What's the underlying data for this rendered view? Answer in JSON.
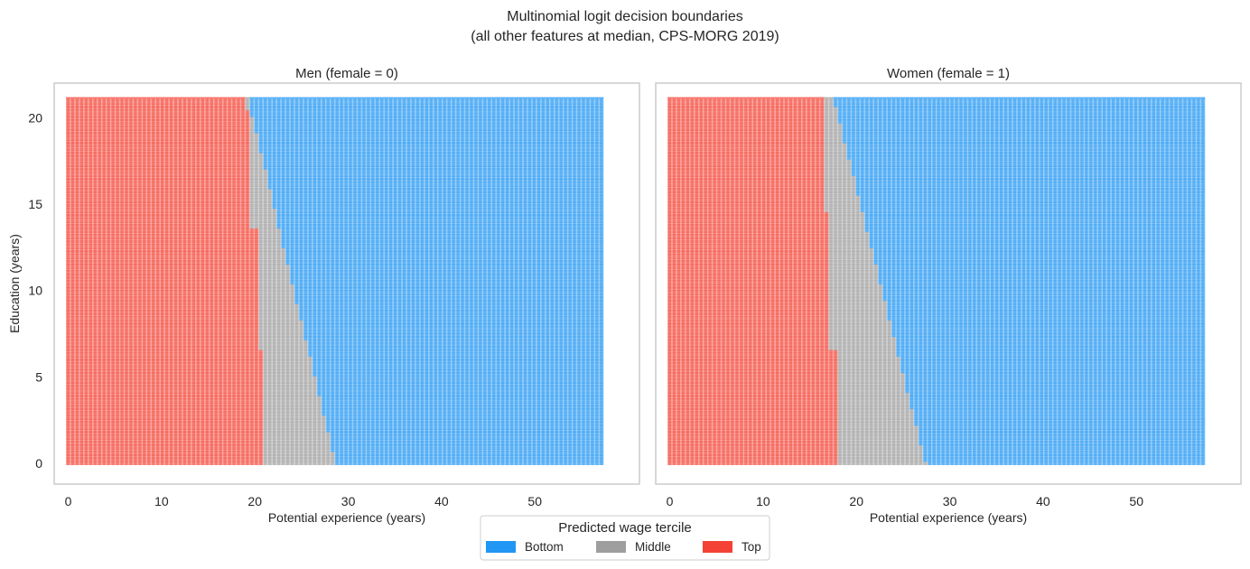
{
  "chart_data": {
    "type": "heatmap",
    "title": "Multinomial logit decision boundaries",
    "subtitle": "(all other features at median, CPS-MORG 2019)",
    "legend": {
      "title": "Predicted wage tercile",
      "placement": "bottom-center",
      "entries": [
        {
          "label": "Bottom",
          "color": "#2196F3"
        },
        {
          "label": "Middle",
          "color": "#9E9E9E"
        },
        {
          "label": "Top",
          "color": "#F44336"
        }
      ]
    },
    "grid": false,
    "x_grid": {
      "min": 0,
      "max": 57,
      "step": 0.48
    },
    "y_grid": {
      "min": 0,
      "max": 21,
      "step": 0.19
    },
    "panels": [
      {
        "title": "Men (female = 0)",
        "xlabel": "Potential experience (years)",
        "ylabel": "Education (years)",
        "xlim": [
          -1.5,
          61.2
        ],
        "ylim": [
          -1.2,
          22.0
        ],
        "xticks": [
          0,
          10,
          20,
          30,
          40,
          50
        ],
        "yticks": [
          0,
          5,
          10,
          15,
          20
        ],
        "show_yticklabels": true,
        "education": [
          0,
          1,
          2,
          3,
          4,
          5,
          6,
          7,
          8,
          9,
          10,
          11,
          12,
          13,
          14,
          15,
          16,
          17,
          18,
          19,
          20,
          21
        ],
        "top_below_experience": [
          21.0,
          21.0,
          21.0,
          21.0,
          21.0,
          21.0,
          21.0,
          20.2,
          20.2,
          20.2,
          20.2,
          20.2,
          20.2,
          20.2,
          19.3,
          19.3,
          19.3,
          19.3,
          19.3,
          19.3,
          19.3,
          18.8
        ],
        "bottom_from_experience": [
          28.6,
          28.2,
          27.7,
          27.3,
          26.8,
          26.4,
          26.0,
          25.5,
          25.1,
          24.6,
          24.2,
          23.7,
          23.3,
          22.8,
          22.4,
          22.0,
          21.5,
          21.1,
          20.6,
          20.2,
          19.7,
          19.3
        ]
      },
      {
        "title": "Women (female = 1)",
        "xlabel": "Potential experience (years)",
        "ylabel": "",
        "xlim": [
          -1.5,
          61.2
        ],
        "ylim": [
          -1.2,
          22.0
        ],
        "xticks": [
          0,
          10,
          20,
          30,
          40,
          50
        ],
        "yticks": [
          0,
          5,
          10,
          15,
          20
        ],
        "show_yticklabels": false,
        "education": [
          0,
          1,
          2,
          3,
          4,
          5,
          6,
          7,
          8,
          9,
          10,
          11,
          12,
          13,
          14,
          15,
          16,
          17,
          18,
          19,
          20,
          21
        ],
        "top_below_experience": [
          18.0,
          18.0,
          18.0,
          18.0,
          18.0,
          18.0,
          18.0,
          17.2,
          17.2,
          17.2,
          17.2,
          17.2,
          17.2,
          17.2,
          17.2,
          16.5,
          16.5,
          16.5,
          16.5,
          16.5,
          16.5,
          16.5
        ],
        "bottom_from_experience": [
          27.4,
          26.9,
          26.5,
          26.0,
          25.5,
          25.1,
          24.6,
          24.1,
          23.7,
          23.2,
          22.7,
          22.3,
          21.8,
          21.3,
          20.9,
          20.4,
          19.9,
          19.5,
          19.0,
          18.5,
          18.1,
          17.6
        ]
      }
    ]
  }
}
